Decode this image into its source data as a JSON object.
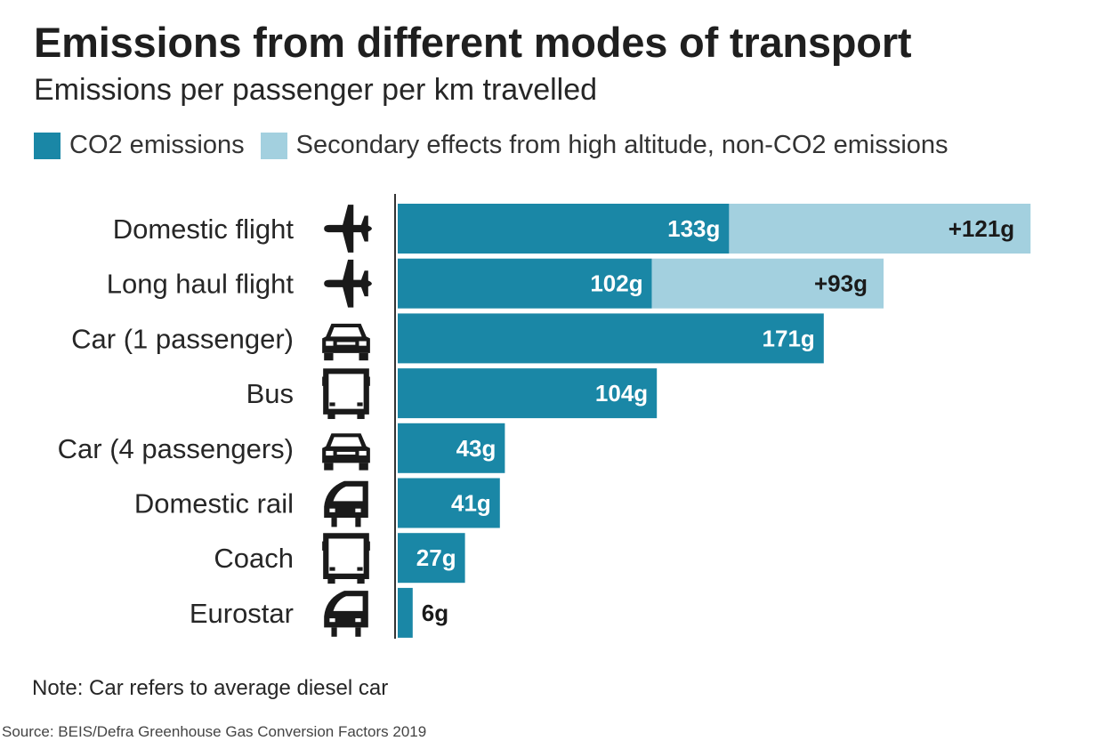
{
  "header": {
    "title": "Emissions from different modes of transport",
    "subtitle": "Emissions per passenger per km travelled"
  },
  "legend": [
    {
      "label": "CO2 emissions",
      "color": "#1a87a6"
    },
    {
      "label": "Secondary effects from high altitude, non-CO2 emissions",
      "color": "#a3d0df"
    }
  ],
  "chart_data": {
    "type": "bar",
    "orientation": "horizontal",
    "stacked": true,
    "unit": "g",
    "categories": [
      "Domestic flight",
      "Long haul flight",
      "Car (1 passenger)",
      "Bus",
      "Car (4 passengers)",
      "Domestic rail",
      "Coach",
      "Eurostar"
    ],
    "icons": [
      "plane-icon",
      "plane-icon",
      "car-icon",
      "bus-icon",
      "car-icon",
      "train-icon",
      "bus-icon",
      "train-icon"
    ],
    "series": [
      {
        "name": "CO2 emissions",
        "color": "#1a87a6",
        "values": [
          133,
          102,
          171,
          104,
          43,
          41,
          27,
          6
        ],
        "labels": [
          "133g",
          "102g",
          "171g",
          "104g",
          "43g",
          "41g",
          "27g",
          "6g"
        ]
      },
      {
        "name": "Secondary effects from high altitude, non-CO2 emissions",
        "color": "#a3d0df",
        "values": [
          121,
          93,
          0,
          0,
          0,
          0,
          0,
          0
        ],
        "labels": [
          "+121g",
          "+93g",
          "",
          "",
          "",
          "",
          "",
          ""
        ]
      }
    ],
    "xlim": [
      0,
      254
    ],
    "grid": false,
    "legend_position": "top-left"
  },
  "footer": {
    "note": "Note: Car refers to average diesel car",
    "source": "Source: BEIS/Defra Greenhouse Gas Conversion Factors 2019"
  }
}
